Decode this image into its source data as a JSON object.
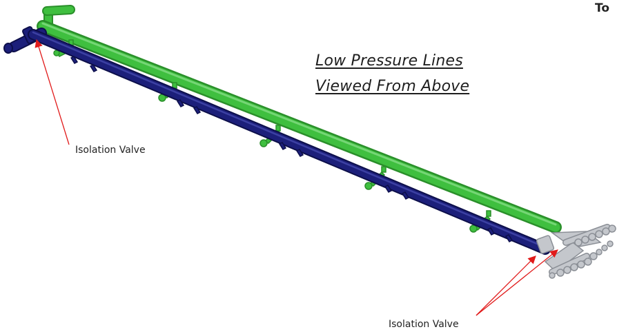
{
  "diagram": {
    "title_lines": [
      "Low Pressure Lines",
      "Viewed From Above"
    ],
    "corner_text": "To",
    "callouts": [
      {
        "label": "Isolation Valve",
        "arrow_count": 1
      },
      {
        "label": "Isolation Valve",
        "arrow_count": 2
      }
    ],
    "colors": {
      "green_line": "#3fbf3f",
      "green_dark": "#2a8f2a",
      "blue_line": "#1c1f7a",
      "blue_dark": "#0d0f4a",
      "manifold": "#c4c7cc",
      "manifold_dark": "#8b8f96",
      "arrow": "#e11b1b"
    }
  }
}
